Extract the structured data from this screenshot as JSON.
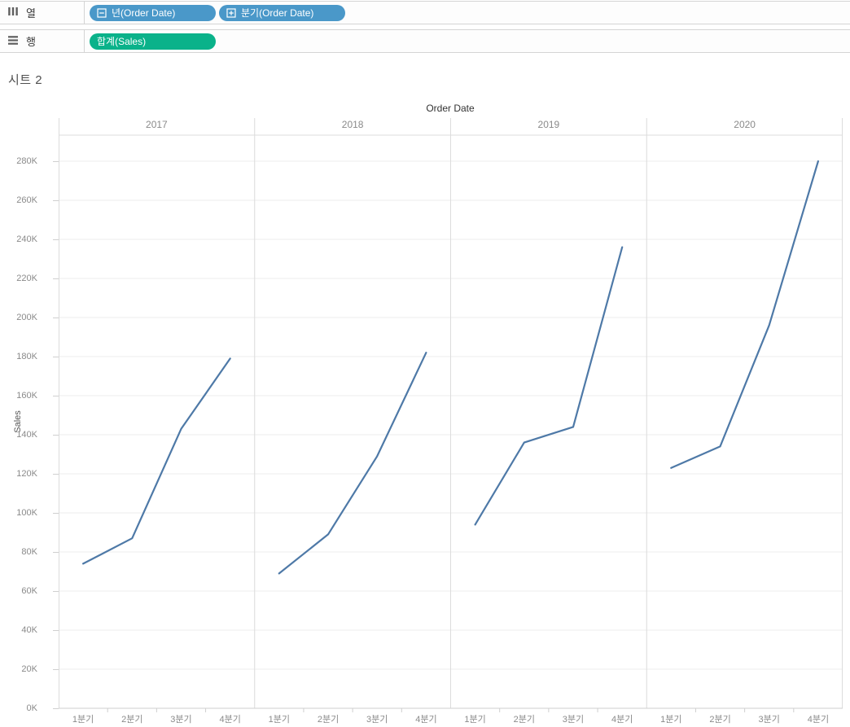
{
  "shelves": {
    "columns": {
      "label": "열",
      "pills": [
        {
          "text": "년(Order Date)",
          "icon": "minus-box",
          "color": "#4A98C9"
        },
        {
          "text": "분기(Order Date)",
          "icon": "plus-box",
          "color": "#4A98C9"
        }
      ]
    },
    "rows": {
      "label": "행",
      "pills": [
        {
          "text": "합계(Sales)",
          "icon": "none",
          "color": "#0AB28A"
        }
      ]
    }
  },
  "sheet_title": "시트 2",
  "chart_data": {
    "type": "line",
    "title": "Order Date",
    "ylabel": "Sales",
    "categories": [
      "1분기",
      "2분기",
      "3분기",
      "4분기"
    ],
    "series": [
      {
        "name": "2017",
        "values": [
          74000,
          87000,
          143000,
          179000
        ]
      },
      {
        "name": "2018",
        "values": [
          69000,
          89000,
          129000,
          182000
        ]
      },
      {
        "name": "2019",
        "values": [
          94000,
          136000,
          144000,
          236000
        ]
      },
      {
        "name": "2020",
        "values": [
          123000,
          134000,
          196000,
          280000
        ]
      }
    ],
    "y_axis": {
      "min": 0,
      "max": 293000,
      "tick_step": 20000,
      "tick_labels": [
        "0K",
        "20K",
        "40K",
        "60K",
        "80K",
        "100K",
        "120K",
        "140K",
        "160K",
        "180K",
        "200K",
        "220K",
        "240K",
        "260K",
        "280K"
      ]
    },
    "line_color": "#4E79A7",
    "grid": true,
    "legend": "none"
  },
  "colors": {
    "pill_blue": "#4A98C9",
    "pill_green": "#0AB28A",
    "line": "#4E79A7",
    "grid": "#ededed",
    "panel_border": "#dcdcdc",
    "axis_line": "#cfcfcf",
    "tick_text": "#8a8a8a",
    "header_text": "#333333"
  }
}
